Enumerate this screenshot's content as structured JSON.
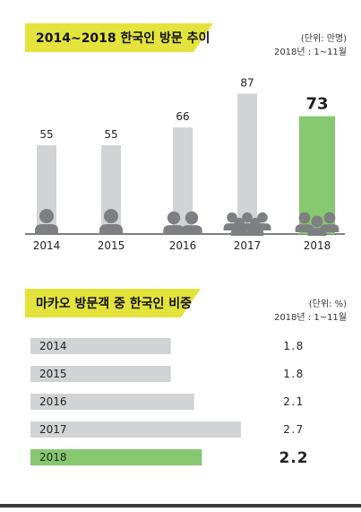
{
  "chart_data": [
    {
      "type": "bar",
      "title": "2014~2018 한국인 방문 추이",
      "unit": "(단위: 만명)",
      "period": "2018년 : 1~11월",
      "categories": [
        "2014",
        "2015",
        "2016",
        "2017",
        "2018"
      ],
      "values": [
        55,
        55,
        66,
        87,
        73
      ],
      "highlight_index": 4,
      "person_icons": [
        1,
        1,
        2,
        4,
        3
      ],
      "colors": {
        "bar": "#d2d3d4",
        "highlight": "#86c86f",
        "icon": "#7d7f82"
      }
    },
    {
      "type": "bar",
      "orientation": "horizontal",
      "title": "마카오 방문객 중 한국인 비중",
      "unit": "(단위: %)",
      "period": "2018년 : 1~11월",
      "categories": [
        "2014",
        "2015",
        "2016",
        "2017",
        "2018"
      ],
      "values": [
        1.8,
        1.8,
        2.1,
        2.7,
        2.2
      ],
      "highlight_index": 4,
      "colors": {
        "bar": "#d2d3d4",
        "highlight": "#86c86f"
      }
    }
  ],
  "colors": {
    "accent": "#e4e33c"
  }
}
